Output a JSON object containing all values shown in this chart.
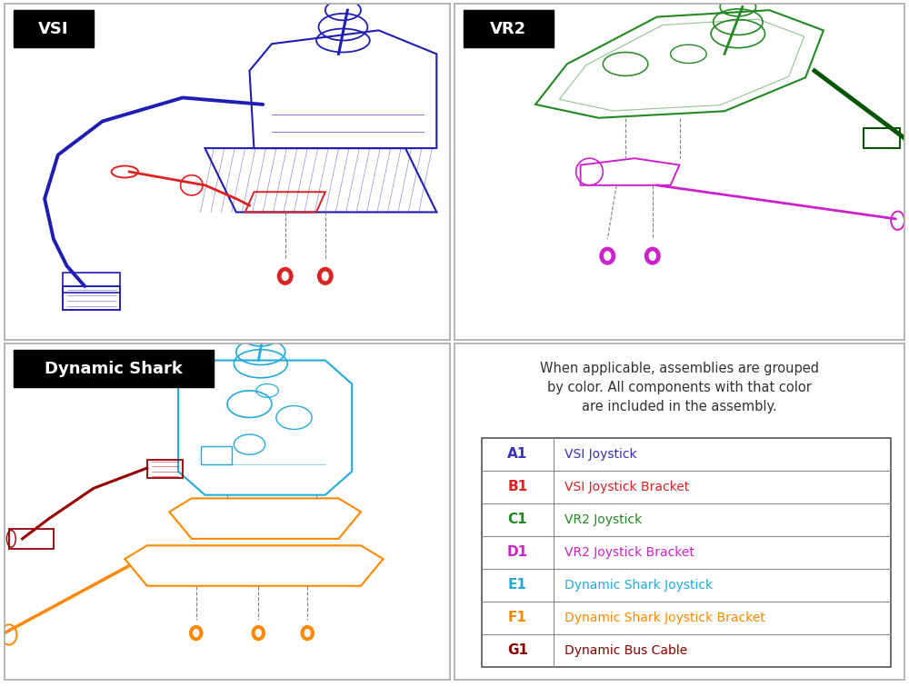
{
  "bg_color": "#ffffff",
  "outer_border_color": "#aaaaaa",
  "divider_color": "#888888",
  "label_bg": "#000000",
  "label_fg": "#ffffff",
  "vsi_label": "VSI",
  "vr2_label": "VR2",
  "ds_label": "Dynamic Shark",
  "vsi_color": "#1e1eb4",
  "vsi_bracket_color": "#dd2222",
  "vr2_joystick_color": "#228822",
  "vr2_bracket_color": "#cc22cc",
  "shark_joystick_color": "#22aadd",
  "shark_bracket_color": "#ff8800",
  "shark_cable_color": "#990000",
  "note_text": "When applicable, assemblies are grouped\nby color. All components with that color\nare included in the assembly.",
  "note_fontsize": 10.5,
  "table_rows": [
    {
      "code": "A1",
      "description": "VSI Joystick",
      "code_color": "#3333bb",
      "desc_color": "#3333bb"
    },
    {
      "code": "B1",
      "description": "VSI Joystick Bracket",
      "code_color": "#dd2222",
      "desc_color": "#dd2222"
    },
    {
      "code": "C1",
      "description": "VR2 Joystick",
      "code_color": "#228822",
      "desc_color": "#228822"
    },
    {
      "code": "D1",
      "description": "VR2 Joystick Bracket",
      "code_color": "#cc22cc",
      "desc_color": "#cc22cc"
    },
    {
      "code": "E1",
      "description": "Dynamic Shark Joystick",
      "code_color": "#22aadd",
      "desc_color": "#22aadd"
    },
    {
      "code": "F1",
      "description": "Dynamic Shark Joystick Bracket",
      "code_color": "#ff8800",
      "desc_color": "#ff8800"
    },
    {
      "code": "G1",
      "description": "Dynamic Bus Cable",
      "code_color": "#880000",
      "desc_color": "#880000"
    }
  ],
  "table_border_color": "#555555",
  "table_divider_color": "#888888"
}
